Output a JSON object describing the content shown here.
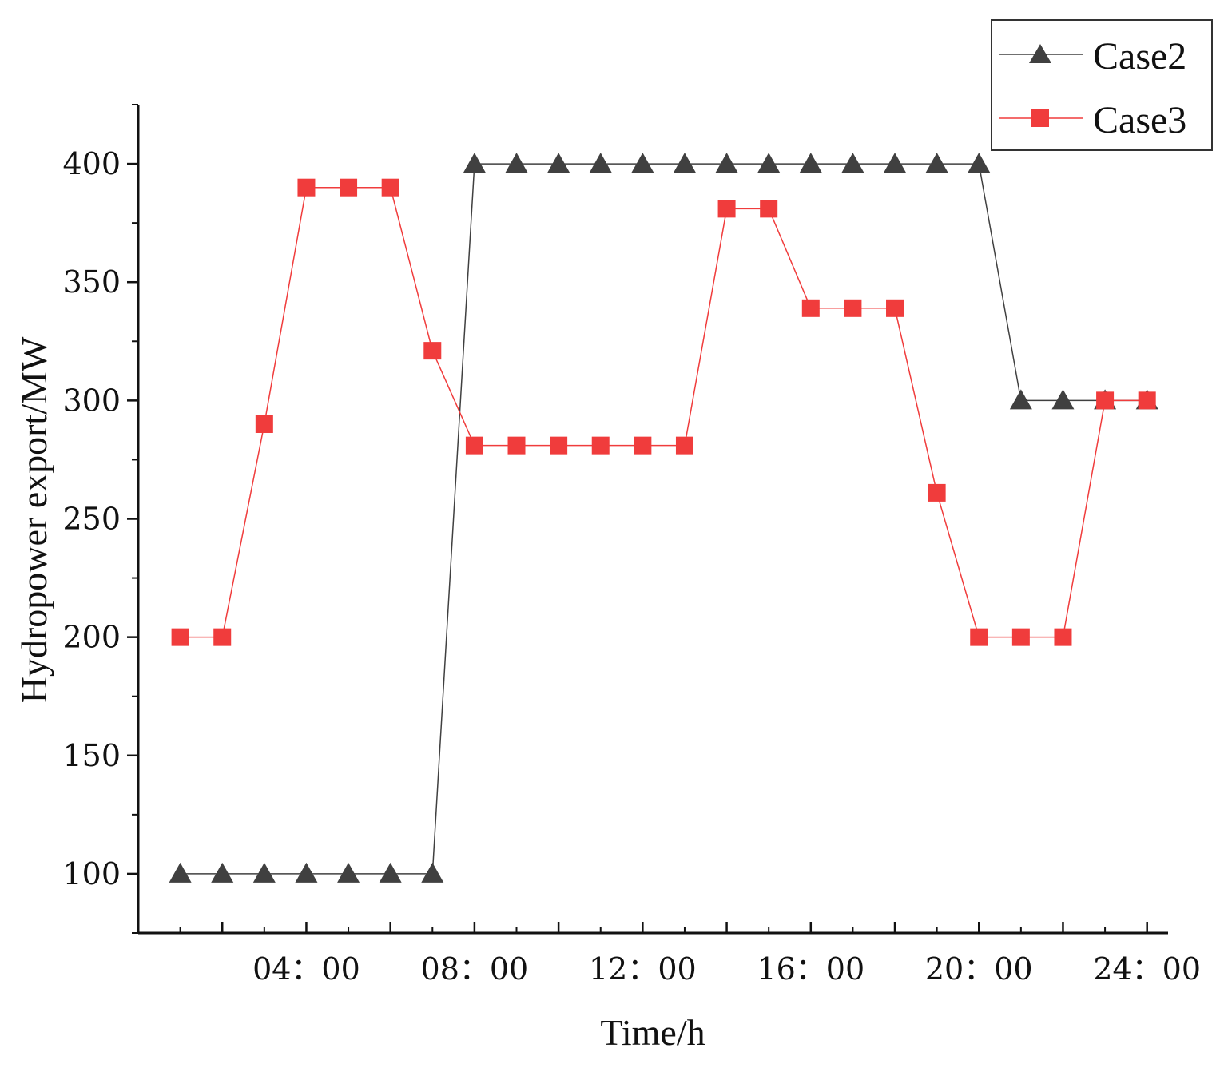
{
  "chart_data": {
    "type": "line",
    "title": "",
    "xlabel": "Time/h",
    "ylabel": "Hydropower export/MW",
    "x": [
      1,
      2,
      3,
      4,
      5,
      6,
      7,
      8,
      9,
      10,
      11,
      12,
      13,
      14,
      15,
      16,
      17,
      18,
      19,
      20,
      21,
      22,
      23,
      24
    ],
    "xlim": [
      0,
      24.5
    ],
    "ylim": [
      75,
      425
    ],
    "x_ticks": [
      2,
      4,
      6,
      8,
      10,
      12,
      14,
      16,
      18,
      20,
      22,
      24
    ],
    "x_tick_labels": [
      {
        "x": 4,
        "label": "04：00"
      },
      {
        "x": 8,
        "label": "08：00"
      },
      {
        "x": 12,
        "label": "12：00"
      },
      {
        "x": 16,
        "label": "16：00"
      },
      {
        "x": 20,
        "label": "20：00"
      },
      {
        "x": 24,
        "label": "24：00"
      }
    ],
    "y_ticks": [
      100,
      150,
      200,
      250,
      300,
      350,
      400
    ],
    "y_minor_ticks": [
      75,
      125,
      175,
      225,
      275,
      325,
      375,
      425
    ],
    "series": [
      {
        "name": "Case2",
        "color": "#404040",
        "marker": "triangle",
        "values": [
          100,
          100,
          100,
          100,
          100,
          100,
          100,
          400,
          400,
          400,
          400,
          400,
          400,
          400,
          400,
          400,
          400,
          400,
          400,
          400,
          300,
          300,
          300,
          300
        ]
      },
      {
        "name": "Case3",
        "color": "#f03c3c",
        "marker": "square",
        "values": [
          200,
          200,
          290,
          390,
          390,
          390,
          321,
          281,
          281,
          281,
          281,
          281,
          281,
          381,
          381,
          339,
          339,
          339,
          261,
          200,
          200,
          200,
          300,
          300
        ]
      }
    ],
    "legend_position": "top-right"
  }
}
